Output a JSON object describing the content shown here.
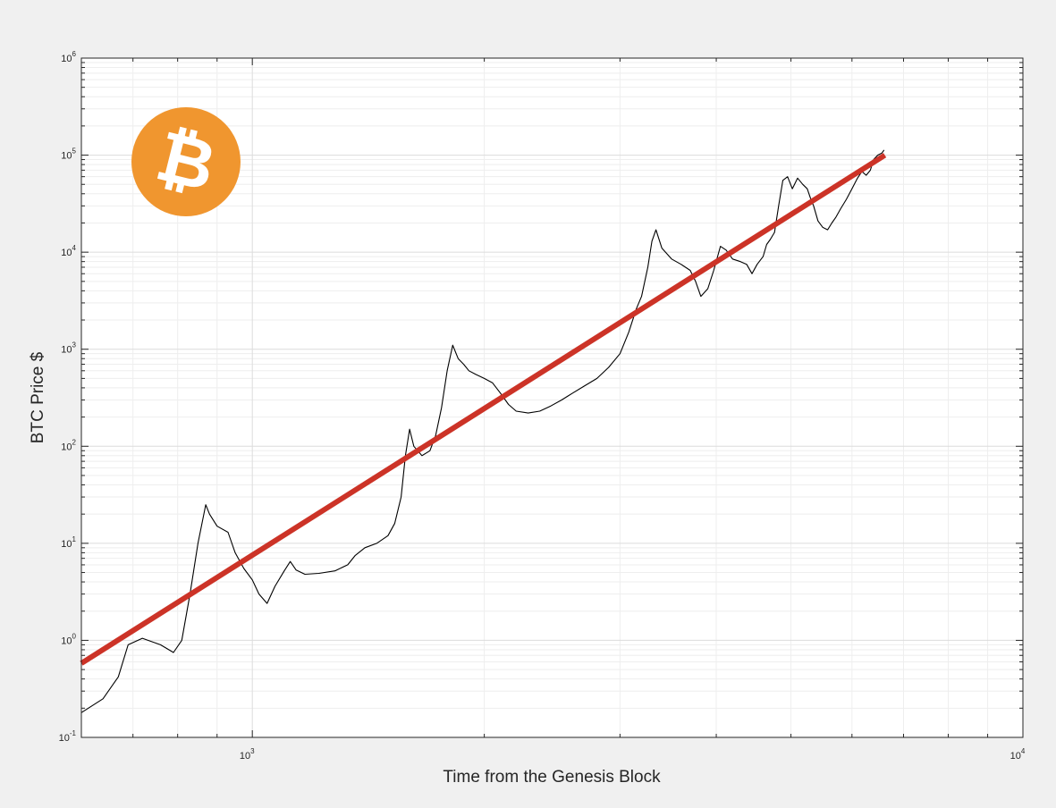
{
  "chart_data": {
    "type": "line",
    "title": "",
    "xlabel": "Time from the Genesis Block",
    "ylabel": "BTC Price $",
    "x_scale": "log",
    "y_scale": "log",
    "xlim": [
      600,
      10000
    ],
    "ylim": [
      0.1,
      1000000
    ],
    "grid": true,
    "legend": "none",
    "x_tick_labels": [
      {
        "value": 1000,
        "base": "10",
        "exp": "3"
      },
      {
        "value": 10000,
        "base": "10",
        "exp": "4"
      }
    ],
    "y_tick_labels": [
      {
        "value": 0.1,
        "base": "10",
        "exp": "-1"
      },
      {
        "value": 1,
        "base": "10",
        "exp": "0"
      },
      {
        "value": 10,
        "base": "10",
        "exp": "1"
      },
      {
        "value": 100,
        "base": "10",
        "exp": "2"
      },
      {
        "value": 1000,
        "base": "10",
        "exp": "3"
      },
      {
        "value": 10000,
        "base": "10",
        "exp": "4"
      },
      {
        "value": 100000,
        "base": "10",
        "exp": "5"
      },
      {
        "value": 1000000,
        "base": "10",
        "exp": "6"
      }
    ],
    "series": [
      {
        "color": "#000000",
        "points": [
          [
            600,
            0.18
          ],
          [
            640,
            0.25
          ],
          [
            670,
            0.42
          ],
          [
            690,
            0.9
          ],
          [
            720,
            1.05
          ],
          [
            760,
            0.9
          ],
          [
            790,
            0.75
          ],
          [
            810,
            1.0
          ],
          [
            830,
            3.0
          ],
          [
            850,
            10
          ],
          [
            870,
            25
          ],
          [
            880,
            20
          ],
          [
            900,
            15
          ],
          [
            930,
            13
          ],
          [
            950,
            8
          ],
          [
            975,
            5.5
          ],
          [
            1000,
            4.2
          ],
          [
            1020,
            3.0
          ],
          [
            1045,
            2.4
          ],
          [
            1070,
            3.6
          ],
          [
            1100,
            5.2
          ],
          [
            1120,
            6.5
          ],
          [
            1140,
            5.3
          ],
          [
            1170,
            4.8
          ],
          [
            1220,
            4.9
          ],
          [
            1280,
            5.2
          ],
          [
            1330,
            6.0
          ],
          [
            1360,
            7.5
          ],
          [
            1400,
            9.0
          ],
          [
            1450,
            10
          ],
          [
            1500,
            12
          ],
          [
            1530,
            16
          ],
          [
            1560,
            30
          ],
          [
            1580,
            80
          ],
          [
            1600,
            150
          ],
          [
            1620,
            100
          ],
          [
            1660,
            80
          ],
          [
            1700,
            90
          ],
          [
            1730,
            130
          ],
          [
            1760,
            250
          ],
          [
            1790,
            600
          ],
          [
            1820,
            1100
          ],
          [
            1850,
            800
          ],
          [
            1880,
            700
          ],
          [
            1910,
            600
          ],
          [
            1950,
            550
          ],
          [
            2000,
            500
          ],
          [
            2050,
            450
          ],
          [
            2100,
            350
          ],
          [
            2150,
            270
          ],
          [
            2200,
            230
          ],
          [
            2280,
            220
          ],
          [
            2360,
            230
          ],
          [
            2440,
            260
          ],
          [
            2520,
            300
          ],
          [
            2600,
            350
          ],
          [
            2700,
            420
          ],
          [
            2800,
            500
          ],
          [
            2900,
            650
          ],
          [
            3000,
            900
          ],
          [
            3080,
            1500
          ],
          [
            3150,
            2600
          ],
          [
            3200,
            3500
          ],
          [
            3260,
            7000
          ],
          [
            3300,
            13000
          ],
          [
            3340,
            17000
          ],
          [
            3400,
            11000
          ],
          [
            3500,
            8500
          ],
          [
            3600,
            7500
          ],
          [
            3700,
            6500
          ],
          [
            3760,
            5000
          ],
          [
            3820,
            3500
          ],
          [
            3900,
            4200
          ],
          [
            3970,
            6500
          ],
          [
            4050,
            11500
          ],
          [
            4120,
            10500
          ],
          [
            4200,
            8500
          ],
          [
            4300,
            8000
          ],
          [
            4380,
            7500
          ],
          [
            4450,
            6000
          ],
          [
            4520,
            7500
          ],
          [
            4600,
            9000
          ],
          [
            4650,
            12000
          ],
          [
            4700,
            13500
          ],
          [
            4760,
            16000
          ],
          [
            4820,
            30000
          ],
          [
            4880,
            55000
          ],
          [
            4950,
            60000
          ],
          [
            5020,
            45000
          ],
          [
            5100,
            58000
          ],
          [
            5180,
            50000
          ],
          [
            5250,
            45000
          ],
          [
            5300,
            36000
          ],
          [
            5350,
            30000
          ],
          [
            5420,
            21000
          ],
          [
            5500,
            18000
          ],
          [
            5580,
            17000
          ],
          [
            5650,
            20000
          ],
          [
            5720,
            23000
          ],
          [
            5800,
            28000
          ],
          [
            5900,
            35000
          ],
          [
            6000,
            45000
          ],
          [
            6100,
            58000
          ],
          [
            6180,
            68000
          ],
          [
            6260,
            62000
          ],
          [
            6340,
            70000
          ],
          [
            6400,
            90000
          ],
          [
            6480,
            100000
          ],
          [
            6560,
            105000
          ],
          [
            6600,
            112000
          ]
        ]
      },
      {
        "color": "#cc3327",
        "points": [
          [
            600,
            0.58
          ],
          [
            6620,
            100000
          ]
        ]
      }
    ]
  },
  "logo": {
    "icon": "bitcoin-icon",
    "color": "#f0962f",
    "glyph": "₿"
  }
}
